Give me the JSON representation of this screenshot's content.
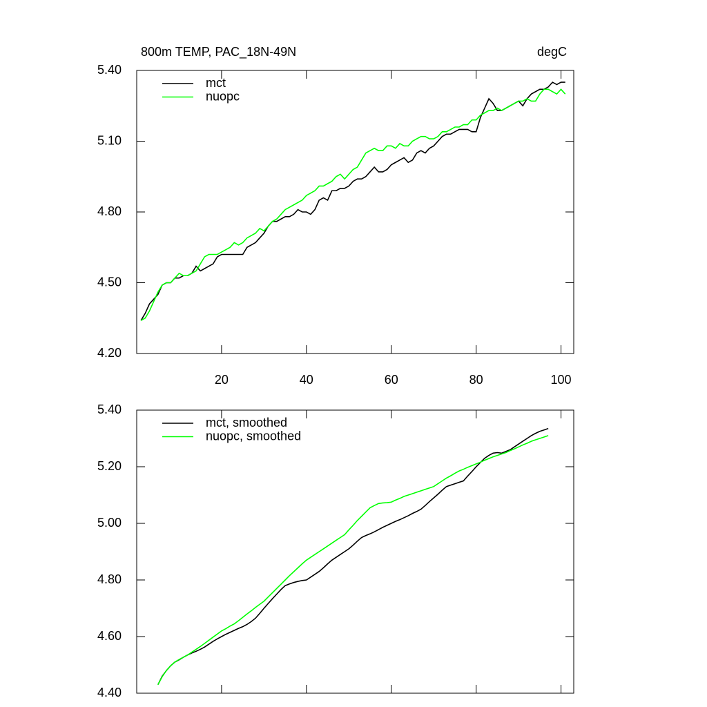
{
  "chart_data": [
    {
      "type": "line",
      "title": "800m TEMP, PAC_18N-49N",
      "units": "degC",
      "x": [
        1,
        2,
        3,
        4,
        5,
        6,
        7,
        8,
        9,
        10,
        11,
        12,
        13,
        14,
        15,
        16,
        17,
        18,
        19,
        20,
        21,
        22,
        23,
        24,
        25,
        26,
        27,
        28,
        29,
        30,
        31,
        32,
        33,
        34,
        35,
        36,
        37,
        38,
        39,
        40,
        41,
        42,
        43,
        44,
        45,
        46,
        47,
        48,
        49,
        50,
        51,
        52,
        53,
        54,
        55,
        56,
        57,
        58,
        59,
        60,
        61,
        62,
        63,
        64,
        65,
        66,
        67,
        68,
        69,
        70,
        71,
        72,
        73,
        74,
        75,
        76,
        77,
        78,
        79,
        80,
        81,
        82,
        83,
        84,
        85,
        86,
        87,
        88,
        89,
        90,
        91,
        92,
        93,
        94,
        95,
        96,
        97,
        98,
        99,
        100,
        101
      ],
      "series": [
        {
          "name": "mct",
          "color": "#000000",
          "values": [
            4.34,
            4.37,
            4.41,
            4.43,
            4.45,
            4.49,
            4.5,
            4.5,
            4.52,
            4.52,
            4.53,
            4.53,
            4.54,
            4.57,
            4.55,
            4.56,
            4.57,
            4.58,
            4.61,
            4.62,
            4.62,
            4.62,
            4.62,
            4.62,
            4.62,
            4.65,
            4.66,
            4.67,
            4.69,
            4.71,
            4.74,
            4.76,
            4.76,
            4.77,
            4.78,
            4.78,
            4.79,
            4.81,
            4.8,
            4.8,
            4.79,
            4.81,
            4.85,
            4.86,
            4.85,
            4.89,
            4.89,
            4.9,
            4.9,
            4.91,
            4.93,
            4.94,
            4.94,
            4.95,
            4.97,
            4.99,
            4.97,
            4.97,
            4.98,
            5.0,
            5.01,
            5.02,
            5.03,
            5.01,
            5.02,
            5.05,
            5.06,
            5.05,
            5.07,
            5.08,
            5.1,
            5.12,
            5.13,
            5.13,
            5.14,
            5.15,
            5.15,
            5.15,
            5.14,
            5.14,
            5.2,
            5.24,
            5.28,
            5.26,
            5.23,
            5.23,
            5.24,
            5.25,
            5.26,
            5.27,
            5.25,
            5.28,
            5.3,
            5.31,
            5.32,
            5.32,
            5.33,
            5.35,
            5.34,
            5.35,
            5.35
          ]
        },
        {
          "name": "nuopc",
          "color": "#00ff00",
          "values": [
            4.34,
            4.35,
            4.38,
            4.42,
            4.46,
            4.49,
            4.5,
            4.5,
            4.52,
            4.54,
            4.53,
            4.53,
            4.54,
            4.55,
            4.58,
            4.61,
            4.62,
            4.62,
            4.62,
            4.63,
            4.64,
            4.65,
            4.67,
            4.66,
            4.67,
            4.69,
            4.7,
            4.71,
            4.73,
            4.72,
            4.74,
            4.76,
            4.77,
            4.79,
            4.81,
            4.82,
            4.83,
            4.84,
            4.85,
            4.87,
            4.88,
            4.89,
            4.91,
            4.91,
            4.92,
            4.93,
            4.95,
            4.96,
            4.94,
            4.96,
            4.98,
            4.99,
            5.02,
            5.05,
            5.06,
            5.07,
            5.06,
            5.06,
            5.08,
            5.08,
            5.07,
            5.09,
            5.08,
            5.08,
            5.1,
            5.11,
            5.12,
            5.12,
            5.11,
            5.11,
            5.12,
            5.14,
            5.14,
            5.15,
            5.16,
            5.16,
            5.17,
            5.17,
            5.19,
            5.19,
            5.21,
            5.22,
            5.23,
            5.23,
            5.24,
            5.23,
            5.24,
            5.25,
            5.26,
            5.27,
            5.27,
            5.28,
            5.27,
            5.27,
            5.3,
            5.32,
            5.32,
            5.31,
            5.3,
            5.32,
            5.3
          ]
        }
      ],
      "xlim": [
        0,
        103
      ],
      "xticks": [
        20,
        40,
        60,
        80,
        100
      ],
      "ylim": [
        4.2,
        5.4
      ],
      "yticks": [
        {
          "value": 4.2,
          "label": "4.20"
        },
        {
          "value": 4.5,
          "label": "4.50"
        },
        {
          "value": 4.8,
          "label": "4.80"
        },
        {
          "value": 5.1,
          "label": "5.10"
        },
        {
          "value": 5.4,
          "label": "5.40"
        }
      ],
      "legend": "upper left"
    },
    {
      "type": "line",
      "x": [
        5,
        6,
        7,
        8,
        9,
        10,
        11,
        12,
        13,
        14,
        15,
        16,
        17,
        18,
        19,
        20,
        21,
        22,
        23,
        24,
        25,
        26,
        27,
        28,
        29,
        30,
        31,
        32,
        33,
        34,
        35,
        36,
        37,
        38,
        39,
        40,
        41,
        42,
        43,
        44,
        45,
        46,
        47,
        48,
        49,
        50,
        51,
        52,
        53,
        54,
        55,
        56,
        57,
        58,
        59,
        60,
        61,
        62,
        63,
        64,
        65,
        66,
        67,
        68,
        69,
        70,
        71,
        72,
        73,
        74,
        75,
        76,
        77,
        78,
        79,
        80,
        81,
        82,
        83,
        84,
        85,
        86,
        87,
        88,
        89,
        90,
        91,
        92,
        93,
        94,
        95,
        96,
        97
      ],
      "series": [
        {
          "name": "mct, smoothed",
          "color": "#000000",
          "values": [
            4.43,
            4.46,
            4.48,
            4.497,
            4.51,
            4.518,
            4.527,
            4.535,
            4.542,
            4.548,
            4.555,
            4.563,
            4.573,
            4.583,
            4.592,
            4.6,
            4.608,
            4.615,
            4.622,
            4.629,
            4.635,
            4.643,
            4.653,
            4.665,
            4.682,
            4.7,
            4.717,
            4.734,
            4.75,
            4.766,
            4.78,
            4.786,
            4.791,
            4.795,
            4.798,
            4.8,
            4.81,
            4.82,
            4.83,
            4.843,
            4.857,
            4.87,
            4.88,
            4.89,
            4.9,
            4.91,
            4.923,
            4.937,
            4.95,
            4.957,
            4.963,
            4.97,
            4.978,
            4.986,
            4.993,
            5.0,
            5.007,
            5.013,
            5.02,
            5.027,
            5.035,
            5.042,
            5.05,
            5.063,
            5.077,
            5.09,
            5.103,
            5.117,
            5.13,
            5.135,
            5.14,
            5.145,
            5.15,
            5.167,
            5.183,
            5.2,
            5.215,
            5.23,
            5.24,
            5.248,
            5.25,
            5.248,
            5.254,
            5.26,
            5.27,
            5.28,
            5.29,
            5.3,
            5.31,
            5.318,
            5.325,
            5.33,
            5.335
          ]
        },
        {
          "name": "nuopc, smoothed",
          "color": "#00ff00",
          "values": [
            4.43,
            4.458,
            4.48,
            4.497,
            4.51,
            4.519,
            4.527,
            4.535,
            4.545,
            4.555,
            4.565,
            4.576,
            4.587,
            4.598,
            4.609,
            4.62,
            4.628,
            4.637,
            4.645,
            4.656,
            4.668,
            4.68,
            4.691,
            4.703,
            4.714,
            4.725,
            4.74,
            4.755,
            4.77,
            4.785,
            4.8,
            4.815,
            4.829,
            4.843,
            4.857,
            4.87,
            4.88,
            4.89,
            4.9,
            4.91,
            4.92,
            4.93,
            4.94,
            4.95,
            4.96,
            4.977,
            4.993,
            5.01,
            5.025,
            5.04,
            5.055,
            5.063,
            5.07,
            5.072,
            5.073,
            5.075,
            5.082,
            5.088,
            5.095,
            5.1,
            5.105,
            5.11,
            5.115,
            5.12,
            5.125,
            5.13,
            5.14,
            5.15,
            5.16,
            5.168,
            5.177,
            5.185,
            5.191,
            5.198,
            5.204,
            5.21,
            5.216,
            5.223,
            5.229,
            5.235,
            5.24,
            5.245,
            5.25,
            5.257,
            5.263,
            5.27,
            5.277,
            5.283,
            5.29,
            5.295,
            5.3,
            5.305,
            5.31
          ]
        }
      ],
      "xlim": [
        0,
        103
      ],
      "xticks": [
        20,
        40,
        60,
        80,
        100
      ],
      "ylim": [
        4.4,
        5.4
      ],
      "yticks": [
        {
          "value": 4.4,
          "label": "4.40"
        },
        {
          "value": 4.6,
          "label": "4.60"
        },
        {
          "value": 4.8,
          "label": "4.80"
        },
        {
          "value": 5.0,
          "label": "5.00"
        },
        {
          "value": 5.2,
          "label": "5.20"
        },
        {
          "value": 5.4,
          "label": "5.40"
        }
      ],
      "legend": "upper left"
    }
  ]
}
